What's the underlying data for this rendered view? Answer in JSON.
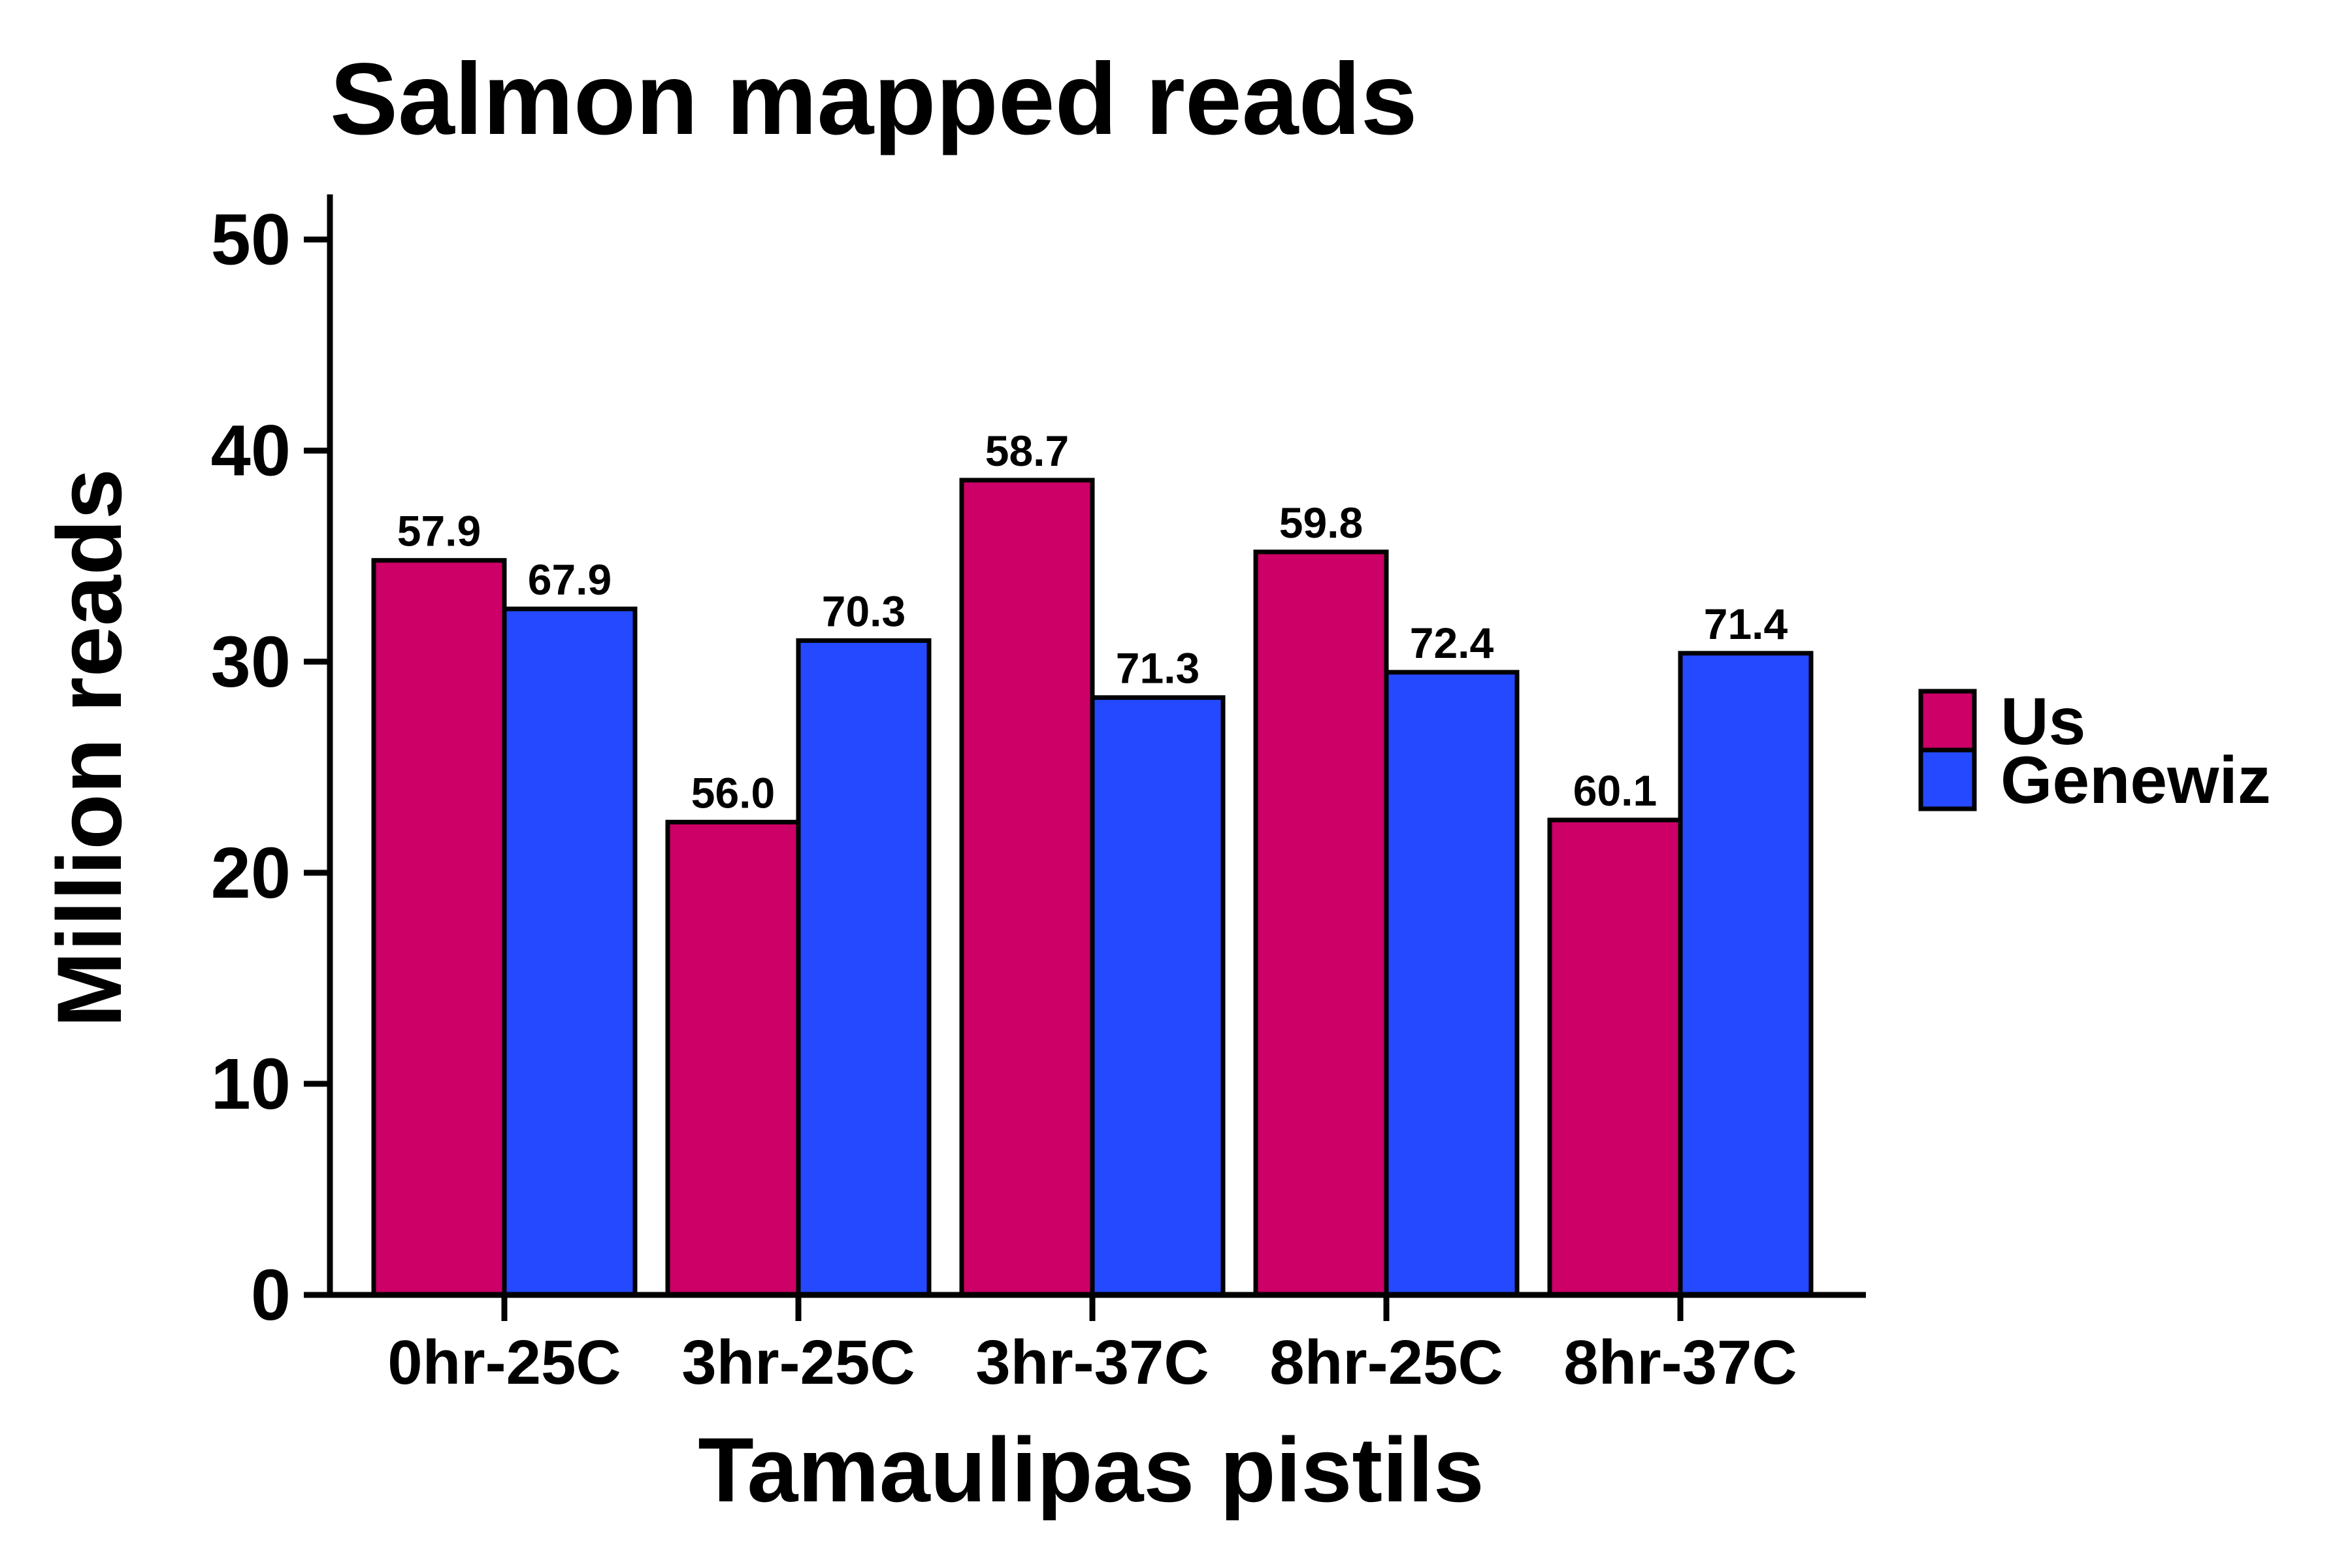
{
  "chart_data": {
    "type": "bar",
    "title": "Salmon mapped reads",
    "xlabel": "Tamaulipas pistils",
    "ylabel": "Million reads",
    "ylim": [
      0,
      52
    ],
    "yticks": [
      0,
      10,
      20,
      30,
      40,
      50
    ],
    "categories": [
      "0hr-25C",
      "3hr-25C",
      "3hr-37C",
      "8hr-25C",
      "8hr-37C"
    ],
    "series": [
      {
        "name": "Us",
        "color": "#CC0066",
        "values": [
          34.8,
          22.4,
          38.6,
          35.2,
          22.5
        ],
        "labels": [
          "57.9",
          "56.0",
          "58.7",
          "59.8",
          "60.1"
        ]
      },
      {
        "name": "Genewiz",
        "color": "#2449FF",
        "values": [
          32.5,
          31.0,
          28.3,
          29.5,
          30.4
        ],
        "labels": [
          "67.9",
          "70.3",
          "71.3",
          "72.4",
          "71.4"
        ]
      }
    ],
    "legend": "right",
    "grid": false
  }
}
